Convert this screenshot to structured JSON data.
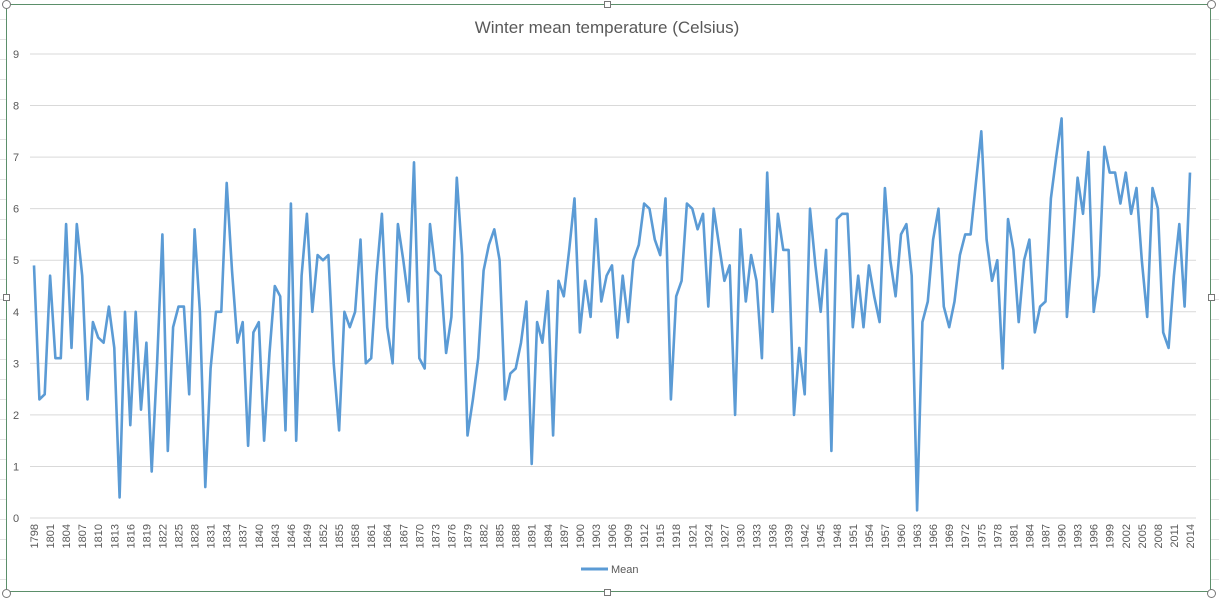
{
  "chart_data": {
    "type": "line",
    "title": "Winter mean temperature (Celsius)",
    "xlabel": "",
    "ylabel": "",
    "ylim": [
      0,
      9
    ],
    "yticks": [
      0,
      1,
      2,
      3,
      4,
      5,
      6,
      7,
      8,
      9
    ],
    "x_start": 1798,
    "x_end": 2014,
    "x_tick_step": 3,
    "grid": true,
    "legend": {
      "position": "bottom",
      "entries": [
        "Mean"
      ]
    },
    "series": [
      {
        "name": "Mean",
        "color": "#5b9bd5",
        "values": [
          4.9,
          2.3,
          2.4,
          4.7,
          3.1,
          3.1,
          5.7,
          3.3,
          5.7,
          4.7,
          2.3,
          3.8,
          3.5,
          3.4,
          4.1,
          3.3,
          0.4,
          4.0,
          1.8,
          4.0,
          2.1,
          3.4,
          0.9,
          3.0,
          5.5,
          1.3,
          3.7,
          4.1,
          4.1,
          2.4,
          5.6,
          4.0,
          0.6,
          2.9,
          4.0,
          4.0,
          6.5,
          4.8,
          3.4,
          3.8,
          1.4,
          3.6,
          3.8,
          1.5,
          3.2,
          4.5,
          4.3,
          1.7,
          6.1,
          1.5,
          4.7,
          5.9,
          4.0,
          5.1,
          5.0,
          5.1,
          3.0,
          1.7,
          4.0,
          3.7,
          4.0,
          5.4,
          3.0,
          3.1,
          4.7,
          5.9,
          3.7,
          3.0,
          5.7,
          5.0,
          4.2,
          6.9,
          3.1,
          2.9,
          5.7,
          4.8,
          4.7,
          3.2,
          3.9,
          6.6,
          5.1,
          1.6,
          2.3,
          3.1,
          4.8,
          5.3,
          5.6,
          5.0,
          2.3,
          2.8,
          2.9,
          3.4,
          4.2,
          1.05,
          3.8,
          3.4,
          4.4,
          1.6,
          4.6,
          4.3,
          5.2,
          6.2,
          3.6,
          4.6,
          3.9,
          5.8,
          4.2,
          4.7,
          4.9,
          3.5,
          4.7,
          3.8,
          5.0,
          5.3,
          6.1,
          6.0,
          5.4,
          5.1,
          6.2,
          2.3,
          4.3,
          4.6,
          6.1,
          6.0,
          5.6,
          5.9,
          4.1,
          6.0,
          5.3,
          4.6,
          4.9,
          2.0,
          5.6,
          4.2,
          5.1,
          4.6,
          3.1,
          6.7,
          4.0,
          5.9,
          5.2,
          5.2,
          2.0,
          3.3,
          2.4,
          6.0,
          4.9,
          4.0,
          5.2,
          1.3,
          5.8,
          5.9,
          5.9,
          3.7,
          4.7,
          3.7,
          4.9,
          4.3,
          3.8,
          6.4,
          5.0,
          4.3,
          5.5,
          5.7,
          4.7,
          0.15,
          3.8,
          4.2,
          5.4,
          6.0,
          4.1,
          3.7,
          4.2,
          5.1,
          5.5,
          5.5,
          6.5,
          7.5,
          5.4,
          4.6,
          5.0,
          2.9,
          5.8,
          5.2,
          3.8,
          5.0,
          5.4,
          3.6,
          4.1,
          4.2,
          6.2,
          7.0,
          7.75,
          3.9,
          5.2,
          6.6,
          5.9,
          7.1,
          4.0,
          4.7,
          7.2,
          6.7,
          6.7,
          6.1,
          6.7,
          5.9,
          6.4,
          5.0,
          3.9,
          6.4,
          6.0,
          3.6,
          3.3,
          4.7,
          5.7,
          4.1,
          6.7
        ]
      }
    ]
  }
}
